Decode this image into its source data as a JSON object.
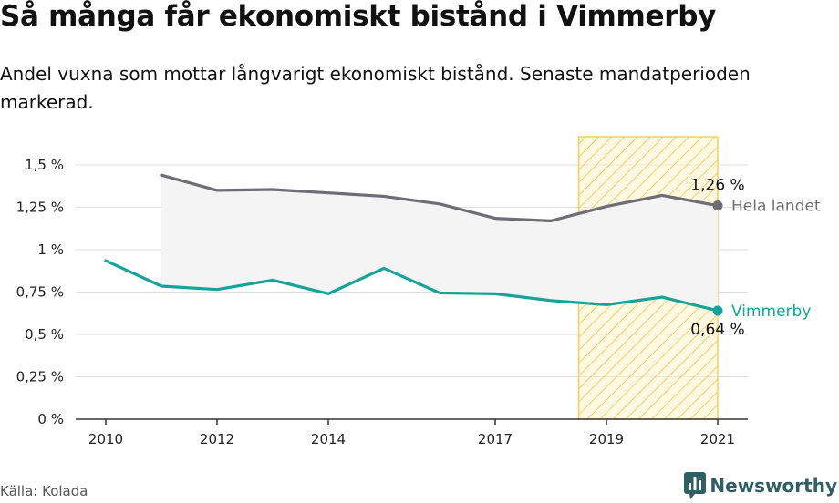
{
  "header": {
    "title": "Så många får ekonomiskt bistånd i Vimmerby",
    "subtitle": "Andel vuxna som mottar långvarigt ekonomiskt bistånd. Senaste mandatperioden markerad."
  },
  "footer": {
    "source": "Källa: Kolada",
    "brand": "Newsworthy",
    "brand_icon": "chat-bar-chart-icon"
  },
  "colors": {
    "national": "#6e6d75",
    "local": "#16a39a",
    "highlight_fill": "#fff2cc",
    "highlight_stroke": "#f3cf63",
    "area_fill": "#f4f4f4",
    "grid": "#dddddd",
    "brand": "#2f5f65"
  },
  "chart_data": {
    "type": "line",
    "x": [
      2010,
      2011,
      2012,
      2013,
      2014,
      2015,
      2016,
      2017,
      2018,
      2019,
      2020,
      2021
    ],
    "x_tick_labels": [
      "2010",
      "2012",
      "2014",
      "2017",
      "2019",
      "2021"
    ],
    "y_tick_labels": [
      "0 %",
      "0,25 %",
      "0,5 %",
      "0,75 %",
      "1 %",
      "1,25 %",
      "1,5 %"
    ],
    "y_ticks": [
      0,
      0.25,
      0.5,
      0.75,
      1,
      1.25,
      1.5
    ],
    "ylim": [
      0,
      1.65
    ],
    "xlim": [
      2009.5,
      2022.1
    ],
    "grid": true,
    "highlight": {
      "from": 2018.5,
      "to": 2021,
      "label": "Senaste mandatperioden"
    },
    "series": [
      {
        "name": "Hela landet",
        "color": "#6e6d75",
        "values": [
          null,
          1.44,
          1.35,
          1.355,
          1.335,
          1.315,
          1.27,
          1.185,
          1.17,
          1.255,
          1.32,
          1.26
        ],
        "end_label": "1,26 %"
      },
      {
        "name": "Vimmerby",
        "color": "#16a39a",
        "values": [
          0.935,
          0.785,
          0.765,
          0.82,
          0.74,
          0.89,
          0.745,
          0.74,
          0.7,
          0.675,
          0.72,
          0.64
        ],
        "end_label": "0,64 %"
      }
    ]
  }
}
